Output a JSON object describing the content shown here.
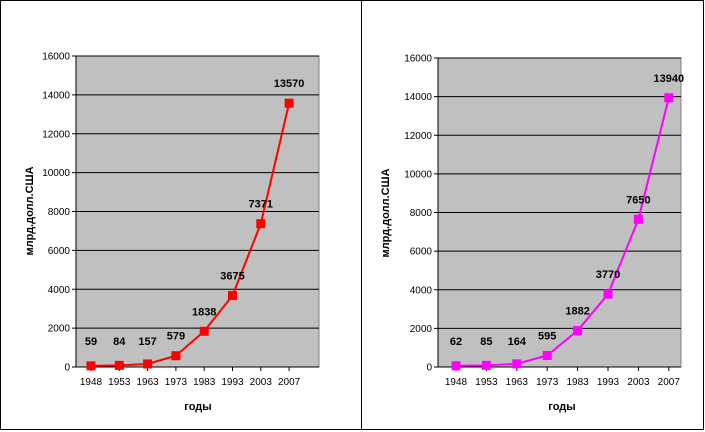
{
  "chart_data": [
    {
      "type": "line",
      "title": "",
      "xlabel": "годы",
      "ylabel": "млрд.долл.США",
      "categories": [
        "1948",
        "1953",
        "1963",
        "1973",
        "1983",
        "1993",
        "2003",
        "2007"
      ],
      "series": [
        {
          "values": [
            59,
            84,
            157,
            579,
            1838,
            3675,
            7371,
            13570
          ],
          "color": "#ff0000",
          "marker": "square"
        }
      ],
      "data_labels": [
        "59",
        "84",
        "157",
        "579",
        "1838",
        "3675",
        "7371",
        "13570"
      ],
      "y_ticks": [
        "0",
        "2000",
        "4000",
        "6000",
        "8000",
        "10000",
        "12000",
        "14000",
        "16000"
      ],
      "ylim": [
        0,
        16000
      ],
      "grid": true,
      "plot_background": "#c0c0c0",
      "legend": "none"
    },
    {
      "type": "line",
      "title": "",
      "xlabel": "годы",
      "ylabel": "млрд.долл.США",
      "categories": [
        "1948",
        "1953",
        "1963",
        "1973",
        "1983",
        "1993",
        "2003",
        "2007"
      ],
      "series": [
        {
          "values": [
            62,
            85,
            164,
            595,
            1882,
            3770,
            7650,
            13940
          ],
          "color": "#ff00ff",
          "marker": "square"
        }
      ],
      "data_labels": [
        "62",
        "85",
        "164",
        "595",
        "1882",
        "3770",
        "7650",
        "13940"
      ],
      "y_ticks": [
        "0",
        "2000",
        "4000",
        "6000",
        "8000",
        "10000",
        "12000",
        "14000",
        "16000"
      ],
      "ylim": [
        0,
        16000
      ],
      "grid": true,
      "plot_background": "#c0c0c0",
      "legend": "none"
    }
  ]
}
